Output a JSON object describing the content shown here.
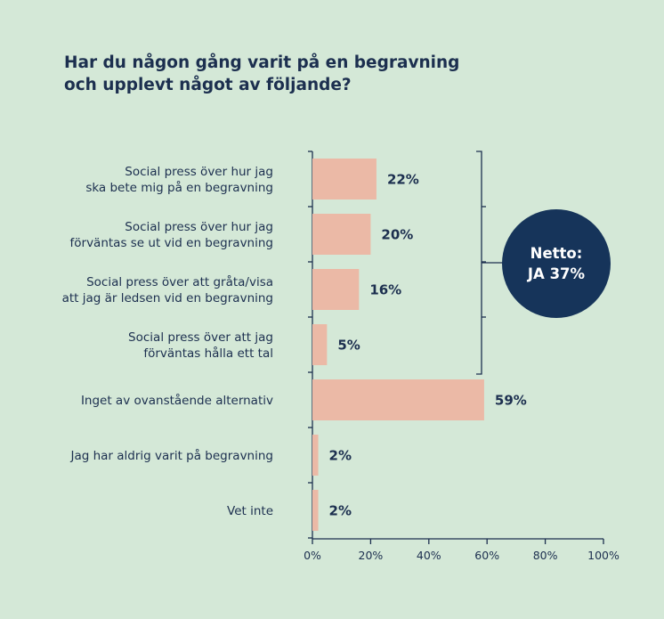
{
  "title_line1": "Har du någon gång varit på en begravning",
  "title_line2": "och upplevt något av följande?",
  "chart_data": {
    "type": "bar",
    "orientation": "horizontal",
    "categories": [
      [
        "Social press över hur jag",
        "ska bete mig på en begravning"
      ],
      [
        "Social press över hur jag",
        "förväntas se ut vid en begravning"
      ],
      [
        "Social press över att gråta/visa",
        "att jag är ledsen vid en begravning"
      ],
      [
        "Social press över att jag",
        "förväntas hålla ett tal"
      ],
      [
        "Inget av ovanstående alternativ"
      ],
      [
        "Jag har aldrig varit på begravning"
      ],
      [
        "Vet inte"
      ]
    ],
    "values": [
      22,
      20,
      16,
      5,
      59,
      2,
      2
    ],
    "value_labels": [
      "22%",
      "20%",
      "16%",
      "5%",
      "59%",
      "2%",
      "2%"
    ],
    "xlim": [
      0,
      100
    ],
    "xticks": [
      0,
      20,
      40,
      60,
      80,
      100
    ],
    "xtick_labels": [
      "0%",
      "20%",
      "40%",
      "60%",
      "80%",
      "100%"
    ],
    "grid": false,
    "bar_color": "#ebb9a6",
    "annotation": {
      "bracket_covers": [
        0,
        1,
        2,
        3
      ],
      "line1": "Netto:",
      "line2": "JA 37%",
      "circle_color": "#16345a"
    }
  }
}
